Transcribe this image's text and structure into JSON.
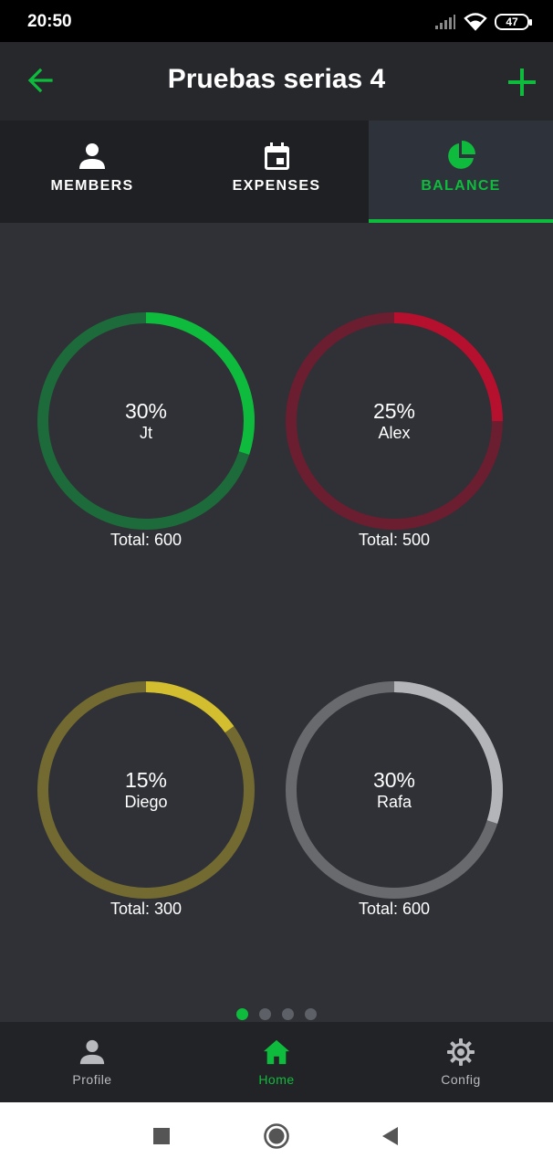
{
  "status_bar": {
    "time": "20:50",
    "battery": "47"
  },
  "app_bar": {
    "title": "Pruebas serias 4"
  },
  "tabs": [
    {
      "label": "MEMBERS",
      "icon": "person-icon"
    },
    {
      "label": "EXPENSES",
      "icon": "calendar-icon"
    },
    {
      "label": "BALANCE",
      "icon": "pie-chart-icon",
      "active": true
    }
  ],
  "balance": {
    "members": [
      {
        "name": "Jt",
        "percent": "30%",
        "fraction": 0.3,
        "total": "Total: 600",
        "accent": "#0fbb3c",
        "track": "#1d6b3a"
      },
      {
        "name": "Alex",
        "percent": "25%",
        "fraction": 0.25,
        "total": "Total: 500",
        "accent": "#b5102e",
        "track": "#6a1e30"
      },
      {
        "name": "Diego",
        "percent": "15%",
        "fraction": 0.15,
        "total": "Total: 300",
        "accent": "#d2be2e",
        "track": "#726a31"
      },
      {
        "name": "Rafa",
        "percent": "30%",
        "fraction": 0.3,
        "total": "Total: 600",
        "accent": "#b4b5b8",
        "track": "#686a6e"
      }
    ]
  },
  "pager": {
    "count": 4,
    "active": 0
  },
  "bottom_nav": [
    {
      "label": "Profile",
      "icon": "person-icon"
    },
    {
      "label": "Home",
      "icon": "home-icon",
      "active": true
    },
    {
      "label": "Config",
      "icon": "gear-icon"
    }
  ],
  "colors": {
    "accent": "#0fbb3c",
    "background": "#2f3136",
    "app_bar": "#26282c"
  }
}
